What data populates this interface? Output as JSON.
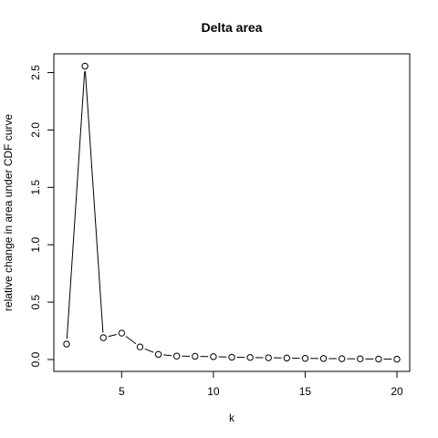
{
  "colors": {
    "background": "#ffffff",
    "foreground": "#000000"
  },
  "chart_data": {
    "type": "line",
    "title": "Delta area",
    "xlabel": "k",
    "ylabel": "relative change in area under CDF curve",
    "xlim": [
      2,
      20
    ],
    "ylim": [
      0,
      2.56
    ],
    "x_ticks": [
      5,
      10,
      15,
      20
    ],
    "x_tick_labels": [
      "5",
      "10",
      "15",
      "20"
    ],
    "y_ticks": [
      0.0,
      0.5,
      1.0,
      1.5,
      2.0,
      2.5
    ],
    "y_tick_labels": [
      "0.0",
      "0.5",
      "1.0",
      "1.5",
      "2.0",
      "2.5"
    ],
    "grid": false,
    "legend": "none",
    "series": [
      {
        "marker": "open-circle",
        "line": "solid",
        "x": [
          2,
          3,
          4,
          5,
          6,
          7,
          8,
          9,
          10,
          11,
          12,
          13,
          14,
          15,
          16,
          17,
          18,
          19,
          20
        ],
        "values": [
          0.135,
          2.556,
          0.19,
          0.23,
          0.11,
          0.045,
          0.03,
          0.028,
          0.025,
          0.02,
          0.018,
          0.015,
          0.013,
          0.01,
          0.009,
          0.007,
          0.006,
          0.004,
          0.003
        ]
      }
    ]
  }
}
